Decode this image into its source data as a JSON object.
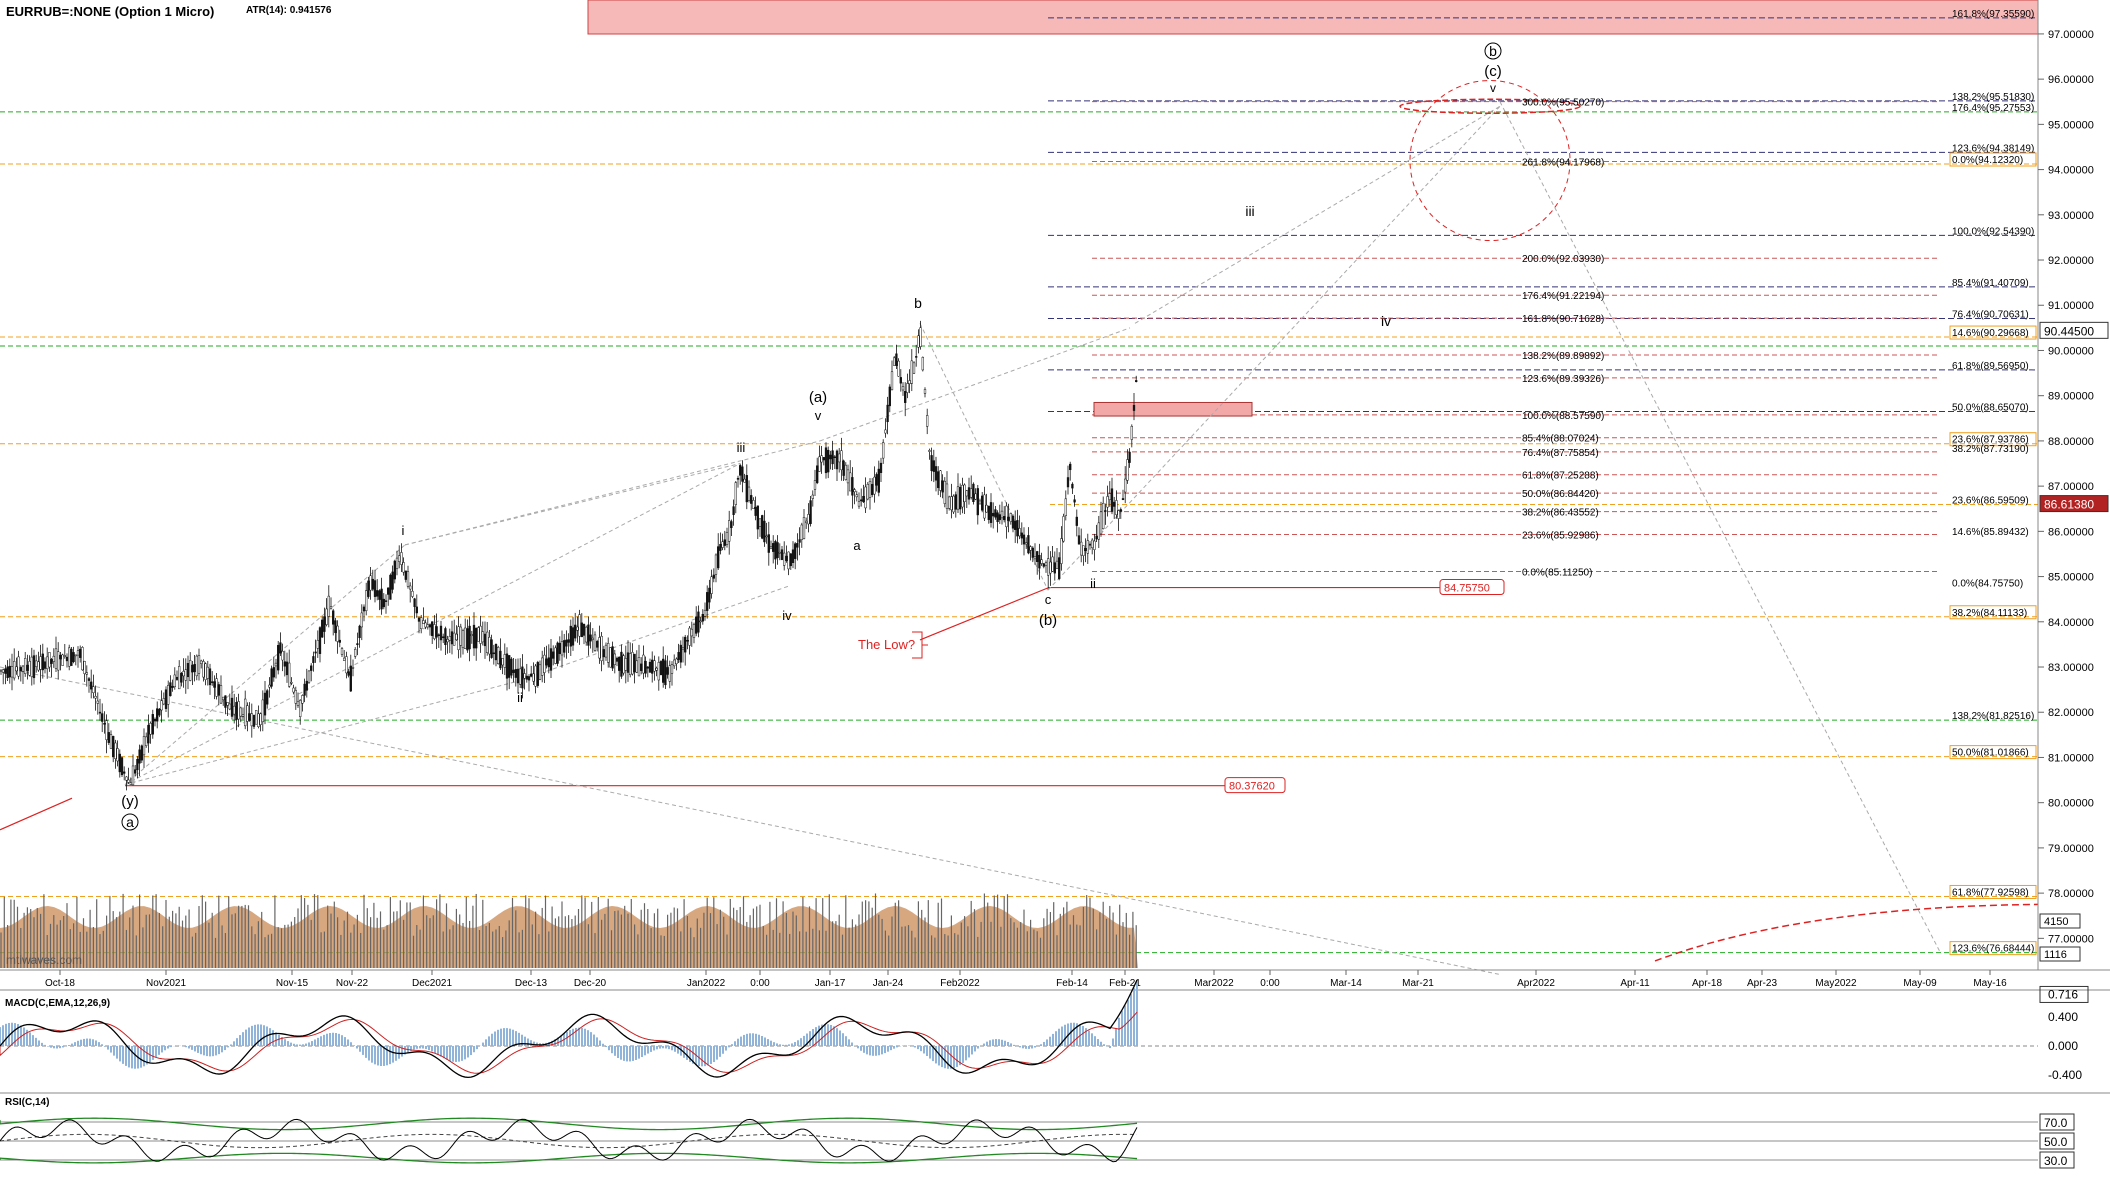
{
  "header": {
    "symbol": "EURRUB=:NONE (Option 1 Micro)",
    "atr": "ATR(14): 0.941576"
  },
  "colors": {
    "green": "#22aa22",
    "orange": "#f0a020",
    "red": "#d22",
    "navy": "#333377",
    "candle": "#111111",
    "volume_fill": "#c98a55"
  },
  "chart_data": {
    "type": "candlestick",
    "ylim": [
      76.3,
      97.75
    ],
    "yticks": [
      "97.00000",
      "96.00000",
      "95.00000",
      "94.00000",
      "93.00000",
      "92.00000",
      "91.00000",
      "90.00000",
      "89.00000",
      "88.00000",
      "87.00000",
      "86.00000",
      "85.00000",
      "84.00000",
      "83.00000",
      "82.00000",
      "81.00000",
      "80.00000",
      "79.00000",
      "78.00000",
      "77.00000"
    ],
    "xticks": [
      "Oct-18",
      "Nov2021",
      "Nov-15",
      "Nov-22",
      "Dec2021",
      "Dec-13",
      "Dec-20",
      "Jan2022",
      "0:00",
      "Jan-17",
      "Jan-24",
      "Feb2022",
      "Feb-14",
      "Feb-21",
      "Mar2022",
      "0:00",
      "Mar-14",
      "Mar-21",
      "Apr2022",
      "Apr-11",
      "Apr-18",
      "Apr-23",
      "May2022",
      "May-09",
      "May-16"
    ],
    "price_path": [
      [
        0,
        82.9
      ],
      [
        30,
        83.0
      ],
      [
        80,
        83.3
      ],
      [
        110,
        81.4
      ],
      [
        130,
        80.4
      ],
      [
        150,
        81.6
      ],
      [
        175,
        82.7
      ],
      [
        200,
        83.1
      ],
      [
        230,
        82.1
      ],
      [
        260,
        81.8
      ],
      [
        280,
        83.4
      ],
      [
        300,
        82.1
      ],
      [
        330,
        84.4
      ],
      [
        350,
        82.7
      ],
      [
        370,
        84.9
      ],
      [
        385,
        84.4
      ],
      [
        400,
        85.5
      ],
      [
        420,
        84.0
      ],
      [
        450,
        83.6
      ],
      [
        480,
        83.7
      ],
      [
        500,
        83.2
      ],
      [
        520,
        82.8
      ],
      [
        535,
        82.8
      ],
      [
        560,
        83.4
      ],
      [
        580,
        83.9
      ],
      [
        600,
        83.4
      ],
      [
        620,
        83.1
      ],
      [
        650,
        83.0
      ],
      [
        670,
        82.9
      ],
      [
        690,
        83.7
      ],
      [
        705,
        84.2
      ],
      [
        720,
        85.6
      ],
      [
        730,
        86.0
      ],
      [
        740,
        87.4
      ],
      [
        755,
        86.5
      ],
      [
        770,
        85.7
      ],
      [
        790,
        85.3
      ],
      [
        810,
        86.4
      ],
      [
        820,
        87.6
      ],
      [
        840,
        87.6
      ],
      [
        860,
        86.6
      ],
      [
        880,
        87.2
      ],
      [
        895,
        89.9
      ],
      [
        905,
        89.0
      ],
      [
        915,
        89.7
      ],
      [
        920,
        90.5
      ],
      [
        930,
        87.6
      ],
      [
        950,
        86.6
      ],
      [
        970,
        86.9
      ],
      [
        990,
        86.4
      ],
      [
        1010,
        86.3
      ],
      [
        1040,
        85.3
      ],
      [
        1060,
        85.2
      ],
      [
        1070,
        87.5
      ],
      [
        1080,
        85.6
      ],
      [
        1095,
        85.7
      ],
      [
        1110,
        86.8
      ],
      [
        1120,
        86.3
      ],
      [
        1130,
        87.7
      ],
      [
        1140,
        90.3
      ]
    ],
    "fib_levels_right": [
      "161.8%(97.35590)",
      "138.2%(95.51830)",
      "176.4%(95.27553)",
      "123.6%(94.38149)",
      "0.0%(94.12320)",
      "100.0%(92.54390)",
      "85.4%(91.40709)",
      "76.4%(90.70631)",
      "14.6%(90.29668)",
      "61.8%(89.56950)",
      "50.0%(88.65070)",
      "23.6%(87.93786)",
      "38.2%(87.73190)",
      "23.6%(86.59509)",
      "14.6%(85.89432)",
      "0.0%(84.75750)",
      "38.2%(84.11133)",
      "138.2%(81.82516)",
      "50.0%(81.01866)",
      "61.8%(77.92598)",
      "123.6%(76.68444)"
    ],
    "fib_levels_mid": [
      "300.0%(95.50270)",
      "261.8%(94.17968)",
      "200.0%(92.03930)",
      "176.4%(91.22194)",
      "161.8%(90.71628)",
      "138.2%(89.89892)",
      "123.6%(89.39326)",
      "100.0%(88.57590)",
      "85.4%(88.07024)",
      "76.4%(87.75854)",
      "61.8%(87.25288)",
      "50.0%(86.84420)",
      "38.2%(86.43552)",
      "23.6%(85.92986)",
      "0.0%(85.11250)"
    ],
    "price_boxes": {
      "last": "90.44500",
      "secondary": "86.61380",
      "low_level": "84.75750",
      "support": "80.37620"
    },
    "volume_boxes": [
      "4150",
      "1116"
    ],
    "wave_labels": {
      "y": "(y)",
      "a_circled": "a",
      "i": "i",
      "ii": "ii",
      "iii": "iii",
      "iv": "iv",
      "v": "v",
      "wave_a": "(a)",
      "a": "a",
      "b": "b",
      "c": "c",
      "wave_b": "(b)",
      "ii_right": "ii",
      "b_circled": "b",
      "wave_c": "(c)",
      "v_top": "v",
      "iii_proj": "iii",
      "iv_proj": "iv"
    },
    "annotation": "The Low?",
    "watermark": "mtiwaves.com"
  },
  "macd": {
    "label": "MACD(C,EMA,12,26,9)",
    "ticks": [
      "0.716",
      "0.400",
      "0.000",
      "-0.400"
    ]
  },
  "rsi": {
    "label": "RSI(C,14)",
    "ticks": [
      "70.0",
      "50.0",
      "30.0"
    ]
  }
}
